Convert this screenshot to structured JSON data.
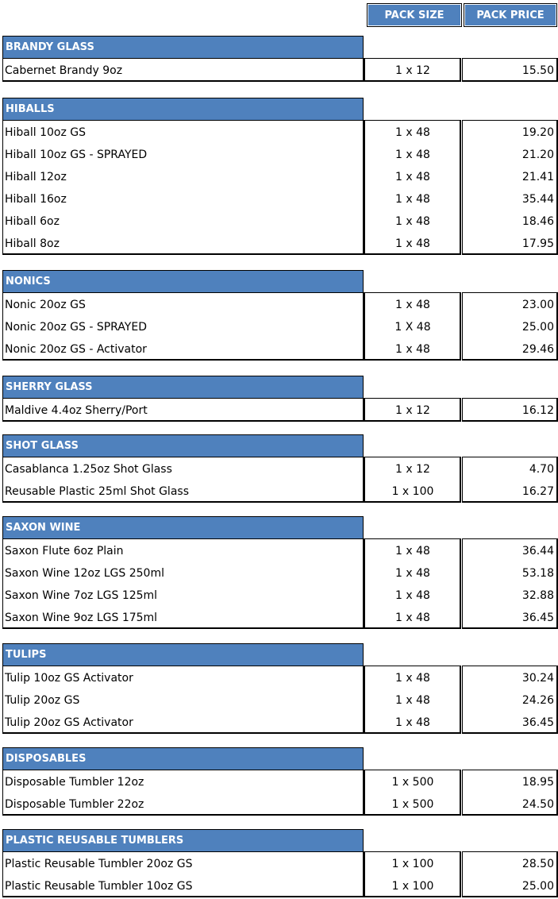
{
  "header": {
    "pack_size": "PACK SIZE",
    "pack_price": "PACK PRICE"
  },
  "sections": [
    {
      "title": "BRANDY GLASS",
      "rows": [
        {
          "name": "Cabernet Brandy 9oz",
          "size": "1 x 12",
          "price": "15.50"
        }
      ]
    },
    {
      "title": "HIBALLS",
      "rows": [
        {
          "name": "Hiball 10oz GS",
          "size": "1 x 48",
          "price": "19.20"
        },
        {
          "name": "Hiball 10oz GS - SPRAYED",
          "size": "1 x 48",
          "price": "21.20"
        },
        {
          "name": "Hiball 12oz",
          "size": "1 x 48",
          "price": "21.41"
        },
        {
          "name": "Hiball 16oz",
          "size": "1 x 48",
          "price": "35.44"
        },
        {
          "name": "Hiball 6oz",
          "size": "1 x 48",
          "price": "18.46"
        },
        {
          "name": "Hiball 8oz",
          "size": "1 x 48",
          "price": "17.95"
        }
      ]
    },
    {
      "title": "NONICS",
      "rows": [
        {
          "name": "Nonic 20oz GS",
          "size": "1 x 48",
          "price": "23.00"
        },
        {
          "name": "Nonic 20oz GS - SPRAYED",
          "size": "1 X 48",
          "price": "25.00"
        },
        {
          "name": "Nonic 20oz GS - Activator",
          "size": "1 x 48",
          "price": "29.46"
        }
      ]
    },
    {
      "title": "SHERRY GLASS",
      "rows": [
        {
          "name": "Maldive 4.4oz Sherry/Port",
          "size": "1 x 12",
          "price": "16.12"
        }
      ]
    },
    {
      "title": "SHOT GLASS",
      "rows": [
        {
          "name": "Casablanca 1.25oz Shot Glass",
          "size": "1 x 12",
          "price": "4.70"
        },
        {
          "name": "Reusable Plastic 25ml Shot Glass",
          "size": "1 x 100",
          "price": "16.27"
        }
      ]
    },
    {
      "title": "SAXON WINE",
      "rows": [
        {
          "name": "Saxon Flute 6oz Plain",
          "size": "1 x 48",
          "price": "36.44"
        },
        {
          "name": "Saxon Wine 12oz LGS 250ml",
          "size": "1 x 48",
          "price": "53.18"
        },
        {
          "name": "Saxon Wine 7oz LGS 125ml",
          "size": "1 x 48",
          "price": "32.88"
        },
        {
          "name": "Saxon Wine 9oz LGS 175ml",
          "size": "1 x 48",
          "price": "36.45"
        }
      ]
    },
    {
      "title": "TULIPS",
      "rows": [
        {
          "name": "Tulip 10oz GS Activator",
          "size": "1 x 48",
          "price": "30.24"
        },
        {
          "name": "Tulip 20oz GS",
          "size": "1 x 48",
          "price": "24.26"
        },
        {
          "name": "Tulip 20oz GS Activator",
          "size": "1 x 48",
          "price": "36.45"
        }
      ]
    },
    {
      "title": "DISPOSABLES",
      "rows": [
        {
          "name": "Disposable Tumbler 12oz",
          "size": "1 x 500",
          "price": "18.95"
        },
        {
          "name": "Disposable Tumbler 22oz",
          "size": "1 x 500",
          "price": "24.50"
        }
      ]
    },
    {
      "title": "PLASTIC REUSABLE TUMBLERS",
      "rows": [
        {
          "name": "Plastic Reusable Tumbler 20oz GS",
          "size": "1 x 100",
          "price": "28.50"
        },
        {
          "name": "Plastic Reusable Tumbler 10oz GS",
          "size": "1 x 100",
          "price": "25.00"
        }
      ]
    }
  ]
}
